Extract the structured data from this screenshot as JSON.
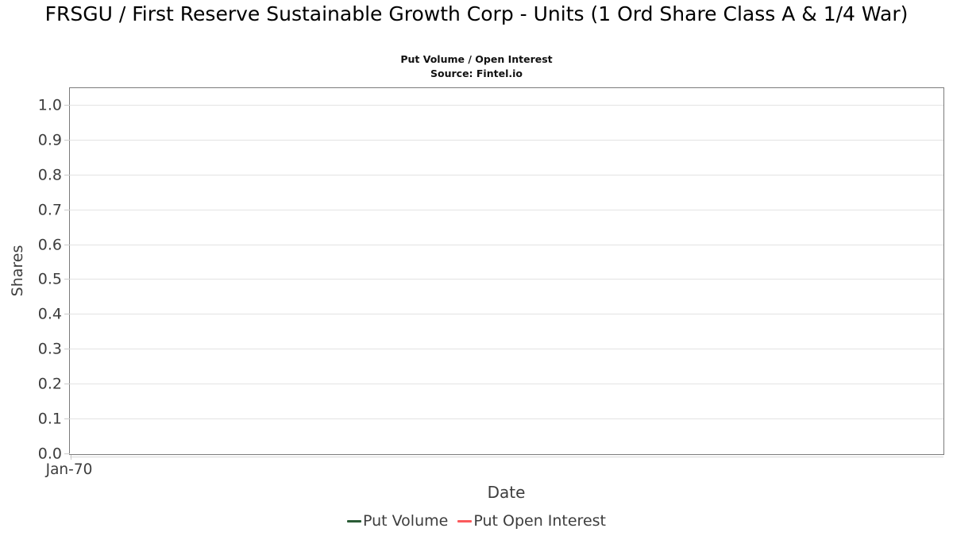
{
  "header": {
    "title": "FRSGU / First Reserve Sustainable Growth Corp - Units (1 Ord Share Class A & 1/4 War)",
    "subtitle": "Put Volume / Open Interest",
    "source": "Source: Fintel.io"
  },
  "chart_data": {
    "type": "line",
    "title": "FRSGU / First Reserve Sustainable Growth Corp - Units (1 Ord Share Class A & 1/4 War)",
    "subtitle": "Put Volume / Open Interest",
    "source": "Source: Fintel.io",
    "xlabel": "Date",
    "ylabel": "Shares",
    "ylim": [
      0,
      1.05
    ],
    "ytick_values": [
      0.0,
      0.1,
      0.2,
      0.3,
      0.4,
      0.5,
      0.6,
      0.7,
      0.8,
      0.9,
      1.0
    ],
    "ytick_labels": [
      "0.0",
      "0.1",
      "0.2",
      "0.3",
      "0.4",
      "0.5",
      "0.6",
      "0.7",
      "0.8",
      "0.9",
      "1.0"
    ],
    "xticks": [
      "Jan-70"
    ],
    "grid": true,
    "legend_position": "bottom",
    "series": [
      {
        "name": "Put Volume",
        "color": "#2a5c36",
        "x": [],
        "values": []
      },
      {
        "name": "Put Open Interest",
        "color": "#fb5a5c",
        "x": [],
        "values": []
      }
    ]
  }
}
